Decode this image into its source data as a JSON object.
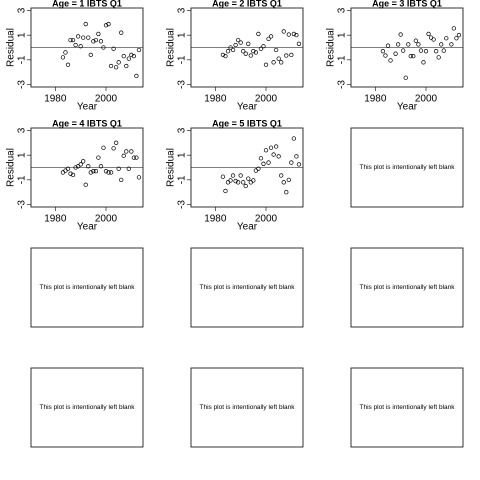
{
  "chart_data": [
    {
      "type": "scatter",
      "title": "Age =  1 IBTS Q1",
      "x_label": "Year",
      "y_label": "Residual",
      "x": [
        1983,
        1984,
        1985,
        1986,
        1987,
        1988,
        1989,
        1990,
        1991,
        1992,
        1993,
        1994,
        1995,
        1996,
        1997,
        1998,
        1999,
        2000,
        2001,
        2002,
        2003,
        2004,
        2005,
        2006,
        2007,
        2008,
        2009,
        2010,
        2011,
        2012,
        2013
      ],
      "values": [
        -0.8,
        -0.4,
        -1.4,
        0.6,
        0.6,
        0.2,
        0.9,
        0.1,
        0.8,
        1.9,
        0.8,
        -0.6,
        0.5,
        0.6,
        1.1,
        0.5,
        0.0,
        1.8,
        1.9,
        -1.5,
        -0.1,
        -1.6,
        -1.2,
        1.2,
        -0.7,
        -1.5,
        -0.9,
        -0.6,
        -0.7,
        -2.3,
        -0.2
      ],
      "xlim": [
        1970.4,
        2014.6
      ],
      "ylim": [
        -3.2,
        3.2
      ],
      "xticks": [
        1980,
        2000
      ],
      "yticks": [
        -3,
        -1,
        1,
        3
      ],
      "refline": 0
    },
    {
      "type": "scatter",
      "title": "Age =  2 IBTS Q1",
      "x_label": "Year",
      "y_label": "Residual",
      "x": [
        1983,
        1984,
        1985,
        1986,
        1987,
        1988,
        1989,
        1990,
        1991,
        1992,
        1993,
        1994,
        1995,
        1996,
        1997,
        1998,
        1999,
        2000,
        2001,
        2002,
        2003,
        2004,
        2005,
        2006,
        2007,
        2008,
        2009,
        2010,
        2011,
        2012,
        2013
      ],
      "values": [
        -0.6,
        -0.7,
        -0.3,
        0.0,
        -0.2,
        0.2,
        0.6,
        0.4,
        -0.3,
        -0.5,
        0.3,
        -0.65,
        -0.3,
        -0.4,
        1.1,
        -0.1,
        0.1,
        -1.4,
        0.7,
        0.9,
        -1.2,
        -0.2,
        -0.9,
        -1.2,
        1.3,
        -0.65,
        1.05,
        -0.6,
        1.1,
        1.0,
        0.3
      ],
      "xlim": [
        1970.4,
        2014.6
      ],
      "ylim": [
        -3.2,
        3.2
      ],
      "xticks": [
        1980,
        2000
      ],
      "yticks": [
        -3,
        -1,
        1,
        3
      ],
      "refline": 0
    },
    {
      "type": "scatter",
      "title": "Age =  3 IBTS Q1",
      "x_label": "Year",
      "y_label": "Residual",
      "x": [
        1983,
        1984,
        1985,
        1986,
        1988,
        1989,
        1990,
        1991,
        1992,
        1993,
        1994,
        1995,
        1996,
        1997,
        1998,
        1999,
        2000,
        2001,
        2002,
        2003,
        2004,
        2005,
        2006,
        2007,
        2008,
        2010,
        2011,
        2012,
        2013
      ],
      "values": [
        -0.3,
        -0.65,
        0.15,
        -1.05,
        -0.5,
        0.25,
        1.05,
        -0.25,
        -2.45,
        0.25,
        -0.7,
        -0.7,
        0.55,
        0.25,
        -0.25,
        -1.2,
        -0.3,
        1.1,
        0.8,
        0.65,
        -0.3,
        -0.8,
        0.25,
        -0.25,
        0.75,
        0.25,
        1.55,
        0.75,
        1.0
      ],
      "xlim": [
        1970.4,
        2014.6
      ],
      "ylim": [
        -3.2,
        3.2
      ],
      "xticks": [
        1980,
        2000
      ],
      "yticks": [
        -3,
        -1,
        1,
        3
      ],
      "refline": 0
    },
    {
      "type": "scatter",
      "title": "Age =  4 IBTS Q1",
      "x_label": "Year",
      "y_label": "Residual",
      "x": [
        1983,
        1984,
        1985,
        1986,
        1987,
        1988,
        1989,
        1990,
        1991,
        1992,
        1993,
        1994,
        1995,
        1996,
        1997,
        1998,
        1999,
        2000,
        2001,
        2002,
        2003,
        2004,
        2005,
        2006,
        2007,
        2008,
        2009,
        2010,
        2011,
        2012,
        2013
      ],
      "values": [
        -0.4,
        -0.25,
        -0.1,
        -0.5,
        -0.6,
        0.0,
        0.1,
        0.25,
        0.5,
        -1.4,
        0.1,
        -0.4,
        -0.3,
        -0.3,
        0.8,
        0.1,
        1.6,
        -0.3,
        -0.4,
        -0.4,
        1.55,
        2.0,
        -0.1,
        -1.0,
        0.95,
        1.3,
        -0.1,
        1.3,
        0.8,
        0.8,
        -0.8
      ],
      "xlim": [
        1970.4,
        2014.6
      ],
      "ylim": [
        -3.2,
        3.2
      ],
      "xticks": [
        1980,
        2000
      ],
      "yticks": [
        -3,
        -1,
        1,
        3
      ],
      "refline": 0
    },
    {
      "type": "scatter",
      "title": "Age =  5 IBTS Q1",
      "x_label": "Year",
      "y_label": "Residual",
      "x": [
        1983,
        1984,
        1985,
        1986,
        1987,
        1988,
        1989,
        1990,
        1991,
        1992,
        1993,
        1994,
        1995,
        1996,
        1997,
        1998,
        1999,
        2000,
        2001,
        2002,
        2003,
        2004,
        2005,
        2006,
        2007,
        2008,
        2009,
        2010,
        2011,
        2012,
        2013
      ],
      "values": [
        -0.75,
        -1.9,
        -1.2,
        -1.05,
        -0.65,
        -1.1,
        -1.2,
        -0.65,
        -1.2,
        -1.5,
        -0.9,
        -1.2,
        -1.05,
        -0.25,
        -0.1,
        0.75,
        0.3,
        1.4,
        0.4,
        1.6,
        1.05,
        1.7,
        0.9,
        -0.65,
        -1.2,
        -2.0,
        -1.0,
        0.4,
        2.35,
        0.9,
        0.25
      ],
      "xlim": [
        1970.4,
        2014.6
      ],
      "ylim": [
        -3.2,
        3.2
      ],
      "xticks": [
        1980,
        2000
      ],
      "yticks": [
        -3,
        -1,
        1,
        3
      ],
      "refline": 0
    },
    {
      "type": "blank",
      "text": "This plot is intentionally left blank"
    },
    {
      "type": "blank",
      "text": "This plot is intentionally left blank"
    },
    {
      "type": "blank",
      "text": "This plot is intentionally left blank"
    },
    {
      "type": "blank",
      "text": "This plot is intentionally left blank"
    },
    {
      "type": "blank",
      "text": "This plot is intentionally left blank"
    },
    {
      "type": "blank",
      "text": "This plot is intentionally left blank"
    },
    {
      "type": "blank",
      "text": "This plot is intentionally left blank"
    }
  ]
}
